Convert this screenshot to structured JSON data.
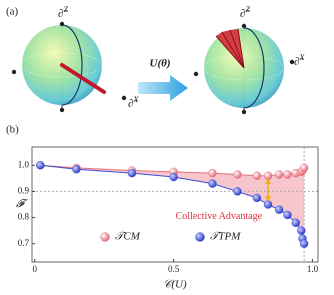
{
  "diagram": {
    "label": "(a)",
    "operator": "U(θ)",
    "axes": [
      {
        "base": "∂̃",
        "sup": "Z"
      },
      {
        "base": "∂̃",
        "sup": "X"
      },
      {
        "base": "∂̃",
        "sup": "Z"
      },
      {
        "base": "∂̃",
        "sup": "X"
      }
    ]
  },
  "chart_data": {
    "type": "scatter",
    "panel_label": "(b)",
    "x_label": "𝒞(U)",
    "y_label": "𝓕",
    "annotation": "Collective Advantage",
    "x": [
      0.02,
      0.15,
      0.35,
      0.5,
      0.64,
      0.73,
      0.8,
      0.84,
      0.88,
      0.91,
      0.94,
      0.96,
      0.964,
      0.97
    ],
    "series": [
      {
        "name": "𝒯CM",
        "color": "#e8707a",
        "values": [
          1.0,
          0.99,
          0.98,
          0.975,
          0.97,
          0.965,
          0.96,
          0.96,
          0.965,
          0.965,
          0.97,
          0.975,
          0.98,
          0.99
        ]
      },
      {
        "name": "𝒯TPM",
        "color": "#3a4fd8",
        "values": [
          1.0,
          0.985,
          0.97,
          0.955,
          0.93,
          0.9,
          0.875,
          0.85,
          0.83,
          0.81,
          0.78,
          0.75,
          0.72,
          0.7
        ]
      }
    ],
    "fill_color": "#f7c5cc",
    "hline": 0.9,
    "vline": 0.97,
    "xlim": [
      -0.01,
      1.02
    ],
    "ylim": [
      0.63,
      1.07
    ],
    "xticks": [
      0,
      0.5,
      {
        "value": 1,
        "label": "1.0"
      }
    ],
    "yticks": [
      {
        "value": 1,
        "label": "1.0"
      },
      0.9,
      0.8,
      0.7
    ]
  }
}
